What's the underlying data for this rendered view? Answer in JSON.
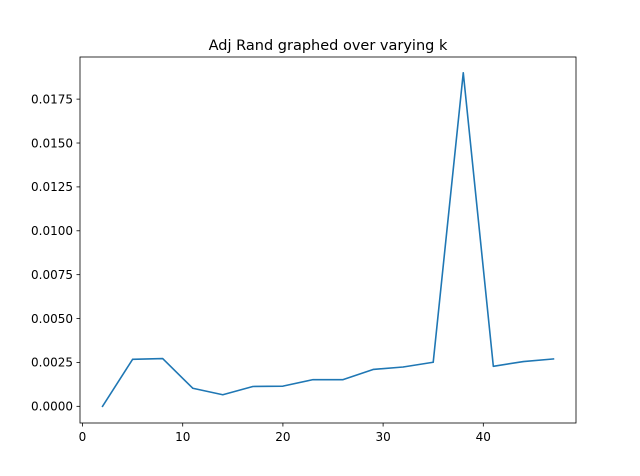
{
  "chart_data": {
    "type": "line",
    "title": "Adj Rand graphed over varying k",
    "xlabel": "",
    "ylabel": "",
    "xlim": [
      -0.25,
      49.25
    ],
    "ylim": [
      -0.00095,
      0.0199
    ],
    "grid": false,
    "x_ticks": [
      0,
      10,
      20,
      30,
      40
    ],
    "x_tick_labels": [
      "0",
      "10",
      "20",
      "30",
      "40"
    ],
    "y_ticks": [
      0,
      0.0025,
      0.005,
      0.0075,
      0.01,
      0.0125,
      0.015,
      0.0175
    ],
    "y_tick_labels": [
      "0.0000",
      "0.0025",
      "0.0050",
      "0.0075",
      "0.0100",
      "0.0125",
      "0.0150",
      "0.0175"
    ],
    "series": [
      {
        "color": "#1f77b4",
        "x": [
          2,
          5,
          8,
          11,
          14,
          17,
          20,
          23,
          26,
          29,
          32,
          35,
          38,
          41,
          44,
          47
        ],
        "y": [
          0.0,
          0.00268,
          0.00272,
          0.00103,
          0.00066,
          0.00113,
          0.00115,
          0.00152,
          0.00152,
          0.0021,
          0.00224,
          0.00251,
          0.019,
          0.00228,
          0.00255,
          0.0027
        ]
      }
    ]
  }
}
